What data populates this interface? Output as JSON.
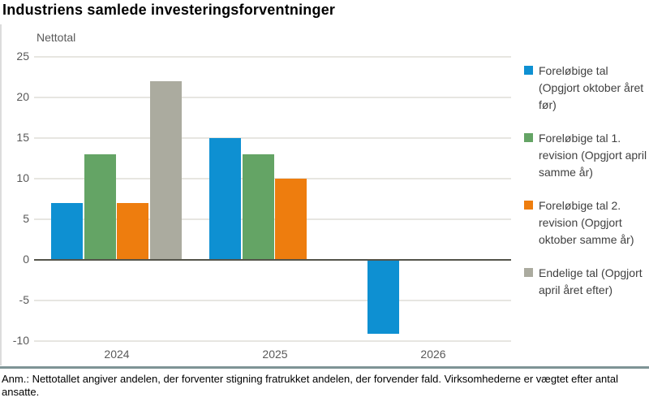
{
  "title": "Industriens samlede investeringsforventninger",
  "note": "Anm.: Nettotallet angiver andelen, der forventer stigning fratrukket andelen, der forvender fald. Virksomhederne er vægtet efter antal ansatte.",
  "colors": {
    "series_blue": "#0e90d2",
    "series_green": "#64a465",
    "series_orange": "#ee7d0e",
    "series_gray": "#abab9f",
    "gridline": "#e7e6e1",
    "zero_line": "#54544a",
    "axis_text": "#595959",
    "legend_text": "#404040",
    "separator": "#7e9496"
  },
  "chart_data": {
    "type": "bar",
    "title": "Industriens samlede investeringsforventninger",
    "ylabel": "Nettotal",
    "xlabel": "",
    "categories": [
      "2024",
      "2025",
      "2026"
    ],
    "series": [
      {
        "name": "Foreløbige tal (Opgjort oktober året før)",
        "color": "#0e90d2",
        "values": [
          7,
          15,
          -9
        ]
      },
      {
        "name": "Foreløbige tal 1. revision (Opgjort april samme år)",
        "color": "#64a465",
        "values": [
          13,
          13,
          null
        ]
      },
      {
        "name": "Foreløbige tal 2. revision (Opgjort oktober samme år)",
        "color": "#ee7d0e",
        "values": [
          7,
          10,
          null
        ]
      },
      {
        "name": "Endelige tal (Opgjort april året efter)",
        "color": "#abab9f",
        "values": [
          22,
          null,
          null
        ]
      }
    ],
    "ylim": [
      -10,
      25
    ],
    "ytick_interval": 5,
    "yticks": [
      -10,
      -5,
      0,
      5,
      10,
      15,
      20,
      25
    ],
    "grid": true,
    "legend_position": "right"
  }
}
